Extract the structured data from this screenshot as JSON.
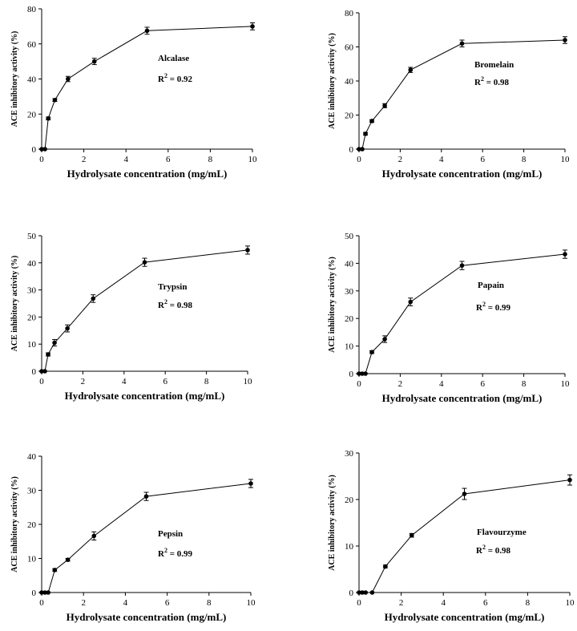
{
  "chart_data": [
    {
      "type": "line",
      "xlabel": "Hydrolysate concentration (mg/mL)",
      "ylabel": "ACE inhibitory activity (%)",
      "xlim": [
        0,
        10
      ],
      "ylim": [
        0,
        80
      ],
      "xticks": [
        0,
        2,
        4,
        6,
        8,
        10
      ],
      "yticks": [
        0,
        20,
        40,
        60,
        80
      ],
      "enzyme": "Alcalase",
      "r2": "0.92",
      "series": [
        {
          "x": [
            0,
            0.156,
            0.313,
            0.625,
            1.25,
            2.5,
            5,
            10
          ],
          "y": [
            0,
            0,
            17.5,
            28,
            40,
            50,
            67.5,
            70
          ],
          "err": [
            0,
            0,
            0.8,
            0.8,
            1.5,
            1.8,
            2,
            2
          ]
        }
      ]
    },
    {
      "type": "line",
      "xlabel": "Hydrolysate concentration (mg/mL)",
      "ylabel": "ACE inhibitory activity (%)",
      "xlim": [
        0,
        10
      ],
      "ylim": [
        0,
        80
      ],
      "xticks": [
        0,
        2,
        4,
        6,
        8,
        10
      ],
      "yticks": [
        0,
        20,
        40,
        60,
        80
      ],
      "enzyme": "Bromelain",
      "r2": "0.98",
      "series": [
        {
          "x": [
            0,
            0.156,
            0.313,
            0.625,
            1.25,
            2.5,
            5,
            10
          ],
          "y": [
            0,
            0,
            9,
            16.5,
            25.5,
            46.5,
            62,
            64
          ],
          "err": [
            0,
            0,
            0.8,
            0.8,
            1.2,
            1.5,
            2,
            2
          ]
        }
      ]
    },
    {
      "type": "line",
      "xlabel": "Hydrolysate concentration (mg/mL)",
      "ylabel": "ACE inhibitory activity (%)",
      "xlim": [
        0,
        10
      ],
      "ylim": [
        0,
        50
      ],
      "xticks": [
        0,
        2,
        4,
        6,
        8,
        10
      ],
      "yticks": [
        0,
        10,
        20,
        30,
        40,
        50
      ],
      "enzyme": "Trypsin",
      "r2": "0.98",
      "series": [
        {
          "x": [
            0,
            0.156,
            0.313,
            0.625,
            1.25,
            2.5,
            5,
            10
          ],
          "y": [
            0,
            0,
            6.2,
            10.5,
            15.8,
            26.8,
            40.2,
            44.7
          ],
          "err": [
            0,
            0,
            0.6,
            1.2,
            1.3,
            1.4,
            1.5,
            1.5
          ]
        }
      ]
    },
    {
      "type": "line",
      "xlabel": "Hydrolysate concentration (mg/mL)",
      "ylabel": "ACE inhibitory activity (%)",
      "xlim": [
        0,
        10
      ],
      "ylim": [
        0,
        50
      ],
      "xticks": [
        0,
        2,
        4,
        6,
        8,
        10
      ],
      "yticks": [
        0,
        10,
        20,
        30,
        40,
        50
      ],
      "enzyme": "Papain",
      "r2": "0.99",
      "series": [
        {
          "x": [
            0,
            0.156,
            0.313,
            0.625,
            1.25,
            2.5,
            5,
            10
          ],
          "y": [
            0,
            0,
            0,
            7.8,
            12.5,
            26,
            39.2,
            43.3
          ],
          "err": [
            0,
            0,
            0,
            0.5,
            1.2,
            1.4,
            1.5,
            1.5
          ]
        }
      ]
    },
    {
      "type": "line",
      "xlabel": "Hydrolysate concentration (mg/mL)",
      "ylabel": "ACE inhibitory activity (%)",
      "xlim": [
        0,
        10
      ],
      "ylim": [
        0,
        40
      ],
      "xticks": [
        0,
        2,
        4,
        6,
        8,
        10
      ],
      "yticks": [
        0,
        10,
        20,
        30,
        40
      ],
      "enzyme": "Pepsin",
      "r2": "0.99",
      "series": [
        {
          "x": [
            0,
            0.156,
            0.313,
            0.625,
            1.25,
            2.5,
            5,
            10
          ],
          "y": [
            0,
            0,
            0,
            6.6,
            9.6,
            16.6,
            28.2,
            32
          ],
          "err": [
            0,
            0,
            0,
            0.4,
            0.4,
            1.2,
            1.2,
            1.2
          ]
        }
      ]
    },
    {
      "type": "line",
      "xlabel": "Hydrolysate concentration (mg/mL)",
      "ylabel": "ACE inhibitory activity (%)",
      "xlim": [
        0,
        10
      ],
      "ylim": [
        0,
        30
      ],
      "xticks": [
        0,
        2,
        4,
        6,
        8,
        10
      ],
      "yticks": [
        0,
        10,
        20,
        30
      ],
      "enzyme": "Flavourzyme",
      "r2": "0.98",
      "series": [
        {
          "x": [
            0,
            0.156,
            0.313,
            0.625,
            1.25,
            2.5,
            5,
            10
          ],
          "y": [
            0,
            0,
            0,
            0,
            5.6,
            12.3,
            21.2,
            24.2
          ],
          "err": [
            0,
            0,
            0,
            0,
            0.3,
            0.4,
            1.2,
            1.1
          ]
        }
      ]
    }
  ]
}
